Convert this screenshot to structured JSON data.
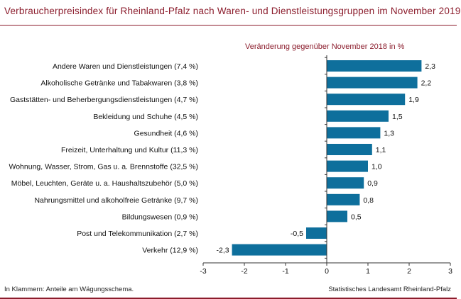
{
  "title": "Verbraucherpreisindex für Rheinland-Pfalz nach Waren- und Dienstleistungsgruppen im November 2019",
  "footnote": "In Klammern: Anteile am Wägungsschema.",
  "source": "Statistisches Landesamt Rheinland-Pfalz",
  "colors": {
    "accent": "#8b1c2c",
    "bar": "#0e6f9c",
    "axis": "#333333"
  },
  "chart_data": {
    "type": "bar",
    "orientation": "horizontal",
    "title": "Verbraucherpreisindex für Rheinland-Pfalz nach Waren- und Dienstleistungsgruppen im November 2019",
    "subtitle": "Veränderung gegenüber November 2018 in %",
    "categories": [
      "Andere Waren und Dienstleistungen (7,4 %)",
      "Alkoholische Getränke und Tabakwaren (3,8 %)",
      "Gaststätten- und Beherbergungsdienstleistungen (4,7 %)",
      "Bekleidung und Schuhe (4,5 %)",
      "Gesundheit (4,6 %)",
      "Freizeit, Unterhaltung und Kultur (11,3 %)",
      "Wohnung, Wasser, Strom, Gas u. a. Brennstoffe (32,5 %)",
      "Möbel, Leuchten, Geräte u. a. Haushaltszubehör (5,0 %)",
      "Nahrungsmittel und alkoholfreie Getränke (9,7 %)",
      "Bildungswesen (0,9 %)",
      "Post und Telekommunikation (2,7 %)",
      "Verkehr (12,9 %)"
    ],
    "values": [
      2.3,
      2.2,
      1.9,
      1.5,
      1.3,
      1.1,
      1.0,
      0.9,
      0.8,
      0.5,
      -0.5,
      -2.3
    ],
    "value_labels": [
      "2,3",
      "2,2",
      "1,9",
      "1,5",
      "1,3",
      "1,1",
      "1,0",
      "0,9",
      "0,8",
      "0,5",
      "-0,5",
      "-2,3"
    ],
    "xlim": [
      -3,
      3
    ],
    "xticks": [
      -3,
      -2,
      -1,
      0,
      1,
      2,
      3
    ],
    "xtick_labels": [
      "-3",
      "-2",
      "-1",
      "0",
      "1",
      "2",
      "3"
    ],
    "grid": false,
    "legend": "none"
  }
}
